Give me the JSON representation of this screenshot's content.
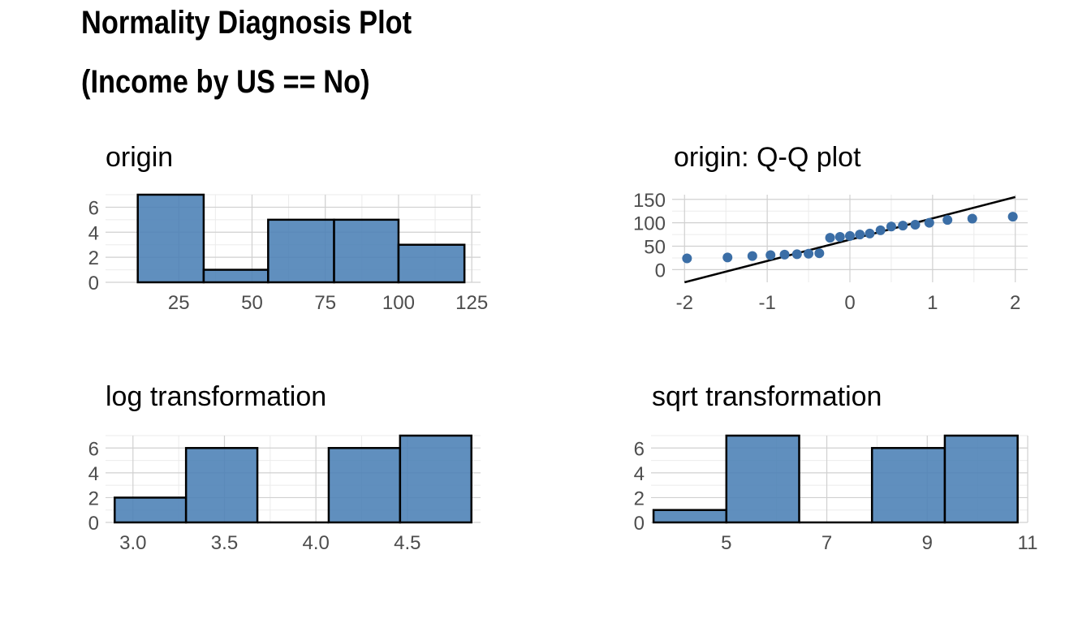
{
  "title": {
    "line1": "Normality Diagnosis Plot",
    "line2": "(Income by US == No)"
  },
  "colors": {
    "bar_fill": "#4a7fb5",
    "bar_outline": "#000000",
    "point": "#3b6ea6",
    "grid": "#d0d0d0"
  },
  "chart_data": [
    {
      "id": "origin",
      "type": "bar",
      "title": "origin",
      "bin_edges": [
        11,
        33.5,
        55.5,
        78,
        100,
        122.5
      ],
      "values": [
        7,
        1,
        5,
        5,
        3
      ],
      "xlim": [
        0,
        128
      ],
      "ylim": [
        0,
        7
      ],
      "x_ticks": [
        25,
        50,
        75,
        100,
        125
      ],
      "x_tick_labels": [
        "25",
        "50",
        "75",
        "100",
        "125"
      ],
      "y_ticks": [
        0,
        2,
        4,
        6
      ],
      "y_tick_labels": [
        "0",
        "2",
        "4",
        "6"
      ],
      "grid": true
    },
    {
      "id": "qq",
      "type": "scatter",
      "title": "origin: Q-Q plot",
      "x": [
        -1.97,
        -1.48,
        -1.18,
        -0.96,
        -0.79,
        -0.64,
        -0.5,
        -0.37,
        -0.24,
        -0.12,
        0.0,
        0.12,
        0.24,
        0.37,
        0.5,
        0.64,
        0.79,
        0.96,
        1.18,
        1.48,
        1.97
      ],
      "y": [
        24,
        26,
        29,
        31,
        32,
        33,
        34,
        35,
        68,
        70,
        72,
        75,
        77,
        84,
        92,
        94,
        96,
        100,
        106,
        109,
        113
      ],
      "reference_line": {
        "x": [
          -2,
          2
        ],
        "y": [
          -27,
          155
        ]
      },
      "xlim": [
        -2.15,
        2.15
      ],
      "ylim": [
        -27,
        160
      ],
      "x_ticks": [
        -2,
        -1,
        0,
        1,
        2
      ],
      "x_tick_labels": [
        "-2",
        "-1",
        "0",
        "1",
        "2"
      ],
      "y_ticks": [
        0,
        50,
        100,
        150
      ],
      "y_tick_labels": [
        "0",
        "50",
        "100",
        "150"
      ],
      "grid": true
    },
    {
      "id": "log",
      "type": "bar",
      "title": "log transformation",
      "bin_edges": [
        2.9,
        3.29,
        3.68,
        4.07,
        4.46,
        4.85
      ],
      "values": [
        2,
        6,
        0,
        6,
        7
      ],
      "xlim": [
        2.85,
        4.9
      ],
      "ylim": [
        0,
        7
      ],
      "x_ticks": [
        3.0,
        3.5,
        4.0,
        4.5
      ],
      "x_tick_labels": [
        "3.0",
        "3.5",
        "4.0",
        "4.5"
      ],
      "y_ticks": [
        0,
        2,
        4,
        6
      ],
      "y_tick_labels": [
        "0",
        "2",
        "4",
        "6"
      ],
      "grid": true
    },
    {
      "id": "sqrt",
      "type": "bar",
      "title": "sqrt transformation",
      "bin_edges": [
        3.55,
        5.0,
        6.45,
        7.9,
        9.35,
        10.8
      ],
      "values": [
        1,
        7,
        0,
        6,
        7
      ],
      "xlim": [
        3.5,
        11.0
      ],
      "ylim": [
        0,
        7
      ],
      "x_ticks": [
        5,
        7,
        9,
        11
      ],
      "x_tick_labels": [
        "5",
        "7",
        "9",
        "11"
      ],
      "y_ticks": [
        0,
        2,
        4,
        6
      ],
      "y_tick_labels": [
        "0",
        "2",
        "4",
        "6"
      ],
      "grid": true
    }
  ]
}
